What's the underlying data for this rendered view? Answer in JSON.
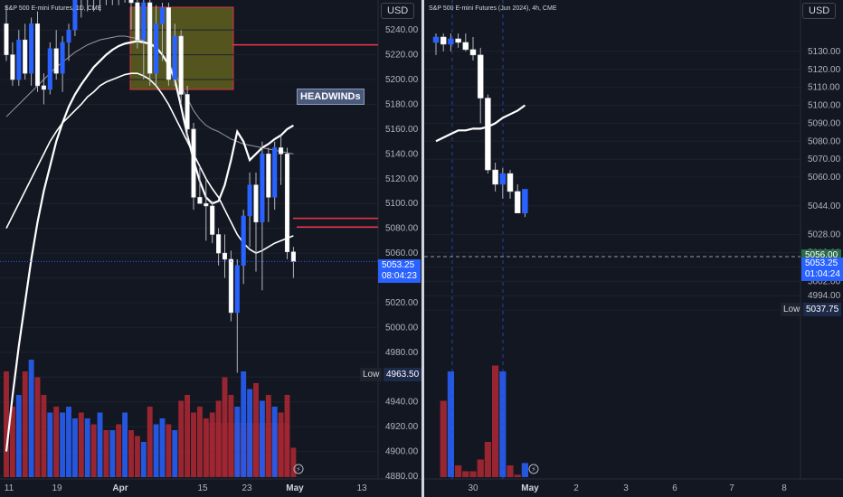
{
  "colors": {
    "background": "#131722",
    "up_body": "#2962ff",
    "down_body": "#ffffff",
    "up_volume": "#2962ff",
    "down_volume": "#b22833",
    "ma_thick": "#ffffff",
    "ma_thin": "#9598a1",
    "level_line": "#f23645",
    "zone_fill": "#5a5b1e",
    "zone_border": "#f23645",
    "axis_text": "#b2b5be"
  },
  "left_chart": {
    "legend": "S&P 500 E-mini Futures, 1D, CME",
    "currency_button": "USD",
    "price_tag": {
      "price": "5053.25",
      "countdown": "08:04:23"
    },
    "low_label": "Low",
    "low_value": "4963.50",
    "annotation": "HEADWINDs",
    "flash_icon": "lightning-icon"
  },
  "right_chart": {
    "legend": "S&P 500 E-mini Futures (Jun 2024), 4h, CME",
    "currency_button": "USD",
    "last_value_tag": "5056.00",
    "price_tag": {
      "price": "5053.25",
      "countdown": "01:04:24"
    },
    "low_label": "Low",
    "low_value": "5037.75",
    "flash_icon": "lightning-icon"
  },
  "chart_data": [
    {
      "type": "candlestick",
      "title": "S&P 500 E-mini Futures, 1D, CME",
      "ylim": [
        4880,
        5270
      ],
      "y_ticks": [
        "5240.00",
        "5220.00",
        "5200.00",
        "5180.00",
        "5160.00",
        "5140.00",
        "5120.00",
        "5100.00",
        "5080.00",
        "5060.00",
        "5040.00",
        "5020.00",
        "5000.00",
        "4980.00",
        "4960.00",
        "4940.00",
        "4920.00",
        "4900.00",
        "4880.00"
      ],
      "x_ticks": [
        "11",
        "19",
        "Apr",
        "15",
        "23",
        "May",
        "13"
      ],
      "candles": [
        {
          "o": 5245,
          "h": 5260,
          "l": 5215,
          "c": 5220
        },
        {
          "o": 5220,
          "h": 5230,
          "l": 5195,
          "c": 5200
        },
        {
          "o": 5200,
          "h": 5240,
          "l": 5195,
          "c": 5232
        },
        {
          "o": 5232,
          "h": 5245,
          "l": 5200,
          "c": 5205
        },
        {
          "o": 5205,
          "h": 5250,
          "l": 5195,
          "c": 5245
        },
        {
          "o": 5245,
          "h": 5255,
          "l": 5190,
          "c": 5195
        },
        {
          "o": 5195,
          "h": 5205,
          "l": 5180,
          "c": 5192
        },
        {
          "o": 5192,
          "h": 5230,
          "l": 5188,
          "c": 5225
        },
        {
          "o": 5225,
          "h": 5240,
          "l": 5200,
          "c": 5205
        },
        {
          "o": 5205,
          "h": 5235,
          "l": 5190,
          "c": 5230
        },
        {
          "o": 5230,
          "h": 5245,
          "l": 5215,
          "c": 5240
        },
        {
          "o": 5240,
          "h": 5275,
          "l": 5235,
          "c": 5268
        },
        {
          "o": 5268,
          "h": 5275,
          "l": 5250,
          "c": 5265
        },
        {
          "o": 5265,
          "h": 5275,
          "l": 5255,
          "c": 5270
        },
        {
          "o": 5270,
          "h": 5275,
          "l": 5255,
          "c": 5268
        },
        {
          "o": 5268,
          "h": 5275,
          "l": 5255,
          "c": 5270
        },
        {
          "o": 5270,
          "h": 5275,
          "l": 5260,
          "c": 5266
        },
        {
          "o": 5266,
          "h": 5275,
          "l": 5260,
          "c": 5272
        },
        {
          "o": 5272,
          "h": 5275,
          "l": 5260,
          "c": 5268
        },
        {
          "o": 5268,
          "h": 5275,
          "l": 5262,
          "c": 5272
        },
        {
          "o": 5272,
          "h": 5275,
          "l": 5240,
          "c": 5262
        },
        {
          "o": 5262,
          "h": 5275,
          "l": 5225,
          "c": 5232
        },
        {
          "o": 5232,
          "h": 5270,
          "l": 5200,
          "c": 5262
        },
        {
          "o": 5262,
          "h": 5275,
          "l": 5195,
          "c": 5205
        },
        {
          "o": 5205,
          "h": 5260,
          "l": 5195,
          "c": 5245
        },
        {
          "o": 5245,
          "h": 5262,
          "l": 5215,
          "c": 5258
        },
        {
          "o": 5258,
          "h": 5262,
          "l": 5195,
          "c": 5200
        },
        {
          "o": 5200,
          "h": 5245,
          "l": 5195,
          "c": 5235
        },
        {
          "o": 5235,
          "h": 5240,
          "l": 5180,
          "c": 5188
        },
        {
          "o": 5188,
          "h": 5195,
          "l": 5150,
          "c": 5160
        },
        {
          "o": 5160,
          "h": 5165,
          "l": 5095,
          "c": 5105
        },
        {
          "o": 5105,
          "h": 5130,
          "l": 5100,
          "c": 5100
        },
        {
          "o": 5100,
          "h": 5120,
          "l": 5070,
          "c": 5098
        },
        {
          "o": 5098,
          "h": 5102,
          "l": 5068,
          "c": 5075
        },
        {
          "o": 5075,
          "h": 5080,
          "l": 5050,
          "c": 5060
        },
        {
          "o": 5060,
          "h": 5075,
          "l": 5040,
          "c": 5055
        },
        {
          "o": 5055,
          "h": 5062,
          "l": 5005,
          "c": 5012
        },
        {
          "o": 5012,
          "h": 5055,
          "l": 4963.5,
          "c": 5050
        },
        {
          "o": 5050,
          "h": 5095,
          "l": 5035,
          "c": 5090
        },
        {
          "o": 5090,
          "h": 5125,
          "l": 5065,
          "c": 5115
        },
        {
          "o": 5115,
          "h": 5125,
          "l": 5045,
          "c": 5085
        },
        {
          "o": 5085,
          "h": 5150,
          "l": 5030,
          "c": 5140
        },
        {
          "o": 5140,
          "h": 5145,
          "l": 5085,
          "c": 5105
        },
        {
          "o": 5105,
          "h": 5150,
          "l": 5095,
          "c": 5145
        },
        {
          "o": 5145,
          "h": 5155,
          "l": 5115,
          "c": 5140
        },
        {
          "o": 5140,
          "h": 5145,
          "l": 5055,
          "c": 5061
        },
        {
          "o": 5061,
          "h": 5065,
          "l": 5040,
          "c": 5053.25
        }
      ],
      "volume_pct": [
        0.9,
        0.6,
        0.7,
        0.9,
        1.0,
        0.85,
        0.7,
        0.55,
        0.6,
        0.55,
        0.6,
        0.5,
        0.55,
        0.5,
        0.45,
        0.55,
        0.4,
        0.4,
        0.45,
        0.55,
        0.4,
        0.35,
        0.3,
        0.6,
        0.45,
        0.5,
        0.45,
        0.4,
        0.65,
        0.7,
        0.55,
        0.6,
        0.5,
        0.55,
        0.65,
        0.85,
        0.7,
        0.6,
        0.9,
        0.75,
        0.8,
        0.65,
        0.7,
        0.6,
        0.55,
        0.7,
        0.25
      ],
      "ma_thick": [
        4900,
        4945,
        4985,
        5020,
        5055,
        5085,
        5110,
        5130,
        5150,
        5165,
        5178,
        5188,
        5196,
        5203,
        5210,
        5215,
        5220,
        5224,
        5227,
        5229,
        5230,
        5231,
        5230,
        5229,
        5226,
        5220,
        5212,
        5200,
        5178,
        5155,
        5135,
        5118,
        5105,
        5100,
        5102,
        5115,
        5135,
        5158,
        5150,
        5135,
        5140,
        5145,
        5148,
        5152,
        5155,
        5160,
        5163
      ],
      "ma_thin": [
        5170,
        5175,
        5180,
        5185,
        5190,
        5195,
        5200,
        5205,
        5210,
        5214,
        5218,
        5222,
        5225,
        5228,
        5230,
        5232,
        5233,
        5234,
        5235,
        5235,
        5234,
        5233,
        5231,
        5228,
        5225,
        5220,
        5213,
        5205,
        5195,
        5185,
        5175,
        5168,
        5163,
        5160,
        5158,
        5155,
        5152,
        5150,
        5148,
        5147,
        5146,
        5145,
        5144,
        5143,
        5142,
        5141,
        5140
      ],
      "ma_mid": [
        5080,
        5090,
        5100,
        5110,
        5120,
        5130,
        5140,
        5150,
        5158,
        5165,
        5170,
        5175,
        5180,
        5186,
        5190,
        5195,
        5198,
        5200,
        5202,
        5204,
        5205,
        5205,
        5203,
        5200,
        5195,
        5188,
        5180,
        5170,
        5160,
        5150,
        5140,
        5130,
        5120,
        5112,
        5105,
        5095,
        5085,
        5075,
        5068,
        5063,
        5060,
        5062,
        5065,
        5068,
        5070,
        5072,
        5074
      ],
      "levels": [
        {
          "price": 5228,
          "from": 257
        },
        {
          "price": 5088,
          "from": 324
        },
        {
          "price": 5081,
          "from": 328
        }
      ]
    },
    {
      "type": "candlestick",
      "title": "S&P 500 E-mini Futures (Jun 2024), 4h, CME",
      "ylim": [
        4980,
        5140
      ],
      "y_ticks": [
        "5130.00",
        "5120.00",
        "5110.00",
        "5100.00",
        "5090.00",
        "5080.00",
        "5070.00",
        "5060.00",
        "5044.00",
        "5028.00",
        "5018.00",
        "5010.00",
        "5002.00",
        "4994.00",
        "4986.00"
      ],
      "x_ticks": [
        "30",
        "May",
        "2",
        "3",
        "6",
        "7",
        "8"
      ],
      "candles": [
        {
          "o": 5135,
          "h": 5140,
          "l": 5128,
          "c": 5138
        },
        {
          "o": 5138,
          "h": 5140,
          "l": 5130,
          "c": 5134
        },
        {
          "o": 5134,
          "h": 5140,
          "l": 5130,
          "c": 5137
        },
        {
          "o": 5137,
          "h": 5140,
          "l": 5132,
          "c": 5135
        },
        {
          "o": 5135,
          "h": 5140,
          "l": 5130,
          "c": 5131
        },
        {
          "o": 5131,
          "h": 5138,
          "l": 5125,
          "c": 5128
        },
        {
          "o": 5128,
          "h": 5132,
          "l": 5090,
          "c": 5104
        },
        {
          "o": 5104,
          "h": 5106,
          "l": 5062,
          "c": 5064
        },
        {
          "o": 5064,
          "h": 5068,
          "l": 5052,
          "c": 5056
        },
        {
          "o": 5056,
          "h": 5065,
          "l": 5048,
          "c": 5062
        },
        {
          "o": 5062,
          "h": 5064,
          "l": 5048,
          "c": 5052
        },
        {
          "o": 5052,
          "h": 5056,
          "l": 5040,
          "c": 5040
        },
        {
          "o": 5040,
          "h": 5052,
          "l": 5037.75,
          "c": 5053.25
        }
      ],
      "volume_pct": [
        0.0,
        0.65,
        0.9,
        0.1,
        0.05,
        0.05,
        0.15,
        0.3,
        0.95,
        0.9,
        0.1,
        0.02,
        0.12
      ],
      "ma_thick": [
        5080,
        5082,
        5084,
        5086,
        5086,
        5087,
        5087,
        5088,
        5090,
        5093,
        5095,
        5097,
        5100
      ],
      "levels": [
        {
          "price": 5076,
          "from": 595,
          "to": 686
        },
        {
          "price": 5044,
          "from": 595,
          "to": 677
        }
      ]
    }
  ]
}
